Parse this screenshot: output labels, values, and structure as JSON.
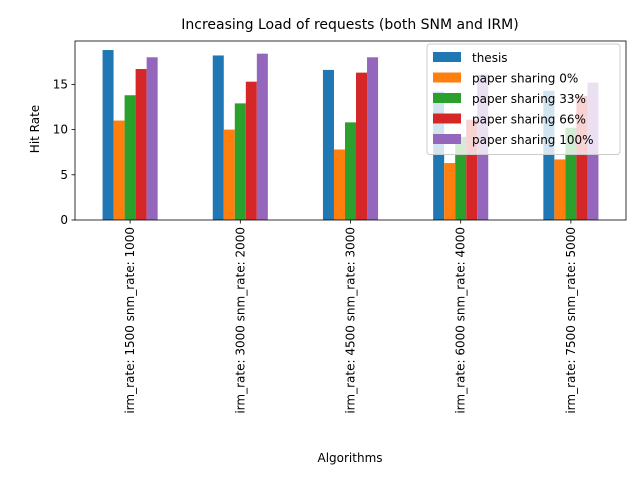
{
  "chart_data": {
    "type": "bar",
    "title": "Increasing Load of requests (both SNM and IRM)",
    "xlabel": "Algorithms",
    "ylabel": "Hit Rate",
    "ylim": [
      0,
      19.8
    ],
    "yticks": [
      0,
      5,
      10,
      15
    ],
    "grid": false,
    "legend_position": "top-right",
    "categories": [
      "irm_rate: 1500 snm_rate: 1000",
      "irm_rate: 3000 snm_rate: 2000",
      "irm_rate: 4500 snm_rate: 3000",
      "irm_rate: 6000 snm_rate: 4000",
      "irm_rate: 7500 snm_rate: 5000"
    ],
    "series": [
      {
        "name": "thesis",
        "color": "#1f77b4",
        "values": [
          18.8,
          18.2,
          16.6,
          14.2,
          14.3
        ]
      },
      {
        "name": "paper sharing 0%",
        "color": "#ff7f0e",
        "values": [
          11.0,
          10.0,
          7.8,
          6.3,
          6.7
        ]
      },
      {
        "name": "paper sharing 33%",
        "color": "#2ca02c",
        "values": [
          13.8,
          12.9,
          10.8,
          9.2,
          10.2
        ]
      },
      {
        "name": "paper sharing 66%",
        "color": "#d62728",
        "values": [
          16.7,
          15.3,
          16.3,
          11.1,
          13.7
        ]
      },
      {
        "name": "paper sharing 100%",
        "color": "#9467bd",
        "values": [
          18.0,
          18.4,
          18.0,
          16.1,
          15.2
        ]
      }
    ]
  }
}
